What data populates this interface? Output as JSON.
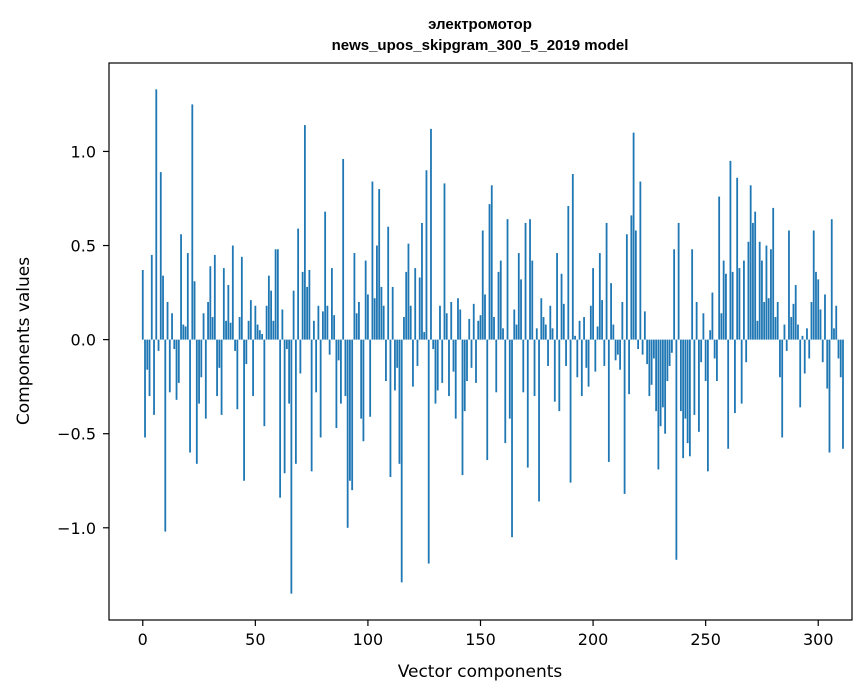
{
  "chart_data": {
    "type": "bar",
    "title_line1": "электромотор",
    "title_line2": "news_upos_skipgram_300_5_2019 model",
    "xlabel": "Vector components",
    "ylabel": "Components values",
    "xlim": [
      -15,
      315
    ],
    "ylim": [
      -1.49,
      1.47
    ],
    "xticks": [
      0,
      50,
      100,
      150,
      200,
      250,
      300
    ],
    "xtick_labels": [
      "0",
      "50",
      "100",
      "150",
      "200",
      "250",
      "300"
    ],
    "yticks": [
      -1.0,
      -0.5,
      0.0,
      0.5,
      1.0
    ],
    "ytick_labels": [
      "−1.0",
      "−0.5",
      "0.0",
      "0.5",
      "1.0"
    ],
    "bar_color": "#1f77b4",
    "values": [
      0.37,
      -0.52,
      -0.16,
      -0.3,
      0.45,
      -0.4,
      1.33,
      -0.06,
      0.89,
      0.34,
      -1.02,
      0.2,
      -0.28,
      0.14,
      -0.05,
      -0.32,
      -0.23,
      0.56,
      0.08,
      0.07,
      0.46,
      -0.6,
      1.25,
      0.31,
      -0.66,
      -0.34,
      -0.2,
      0.14,
      -0.42,
      0.2,
      0.39,
      0.12,
      0.45,
      -0.3,
      -0.15,
      -0.4,
      0.38,
      0.1,
      0.29,
      0.09,
      0.5,
      -0.06,
      -0.37,
      0.12,
      0.44,
      -0.75,
      -0.13,
      0.1,
      0.21,
      -0.3,
      0.18,
      0.08,
      0.05,
      0.03,
      -0.46,
      0.18,
      0.34,
      0.26,
      0.1,
      0.48,
      0.48,
      -0.84,
      0.16,
      -0.71,
      -0.05,
      -0.34,
      -1.35,
      0.26,
      -0.66,
      0.59,
      -0.18,
      0.36,
      1.14,
      0.28,
      0.37,
      -0.7,
      0.1,
      -0.28,
      0.18,
      -0.52,
      0.15,
      0.68,
      0.18,
      -0.08,
      0.38,
      0.13,
      -0.47,
      -0.11,
      -0.34,
      0.96,
      -0.3,
      -1.0,
      -0.75,
      -0.8,
      0.46,
      0.14,
      0.2,
      -0.42,
      -0.54,
      0.42,
      0.24,
      -0.41,
      0.84,
      0.22,
      0.5,
      0.8,
      0.28,
      0.18,
      -0.22,
      0.6,
      -0.73,
      0.28,
      -0.27,
      -0.15,
      -0.66,
      -1.29,
      0.12,
      0.36,
      0.51,
      0.18,
      -0.25,
      0.38,
      -0.14,
      0.33,
      0.62,
      0.04,
      0.9,
      -1.19,
      1.12,
      -0.05,
      -0.34,
      -0.27,
      0.18,
      -0.23,
      0.83,
      0.14,
      -0.3,
      0.2,
      -0.17,
      -0.42,
      0.22,
      0.16,
      -0.72,
      -0.38,
      -0.22,
      0.11,
      -0.15,
      0.19,
      -0.23,
      0.1,
      0.13,
      0.58,
      0.24,
      -0.64,
      0.72,
      0.82,
      0.12,
      -0.28,
      0.36,
      0.42,
      0.06,
      -0.55,
      0.64,
      -0.42,
      -1.05,
      0.16,
      0.08,
      0.46,
      0.32,
      -0.28,
      0.62,
      -0.68,
      0.64,
      0.42,
      -0.3,
      0.06,
      -0.86,
      0.22,
      0.12,
      0.08,
      -0.14,
      0.18,
      0.06,
      -0.33,
      0.46,
      -0.38,
      0.35,
      0.19,
      -0.14,
      0.71,
      -0.76,
      0.88,
      0.02,
      -0.2,
      0.1,
      -0.3,
      0.12,
      -0.15,
      -0.25,
      0.18,
      0.38,
      -0.17,
      0.07,
      0.46,
      0.21,
      -0.14,
      0.62,
      -0.65,
      0.3,
      0.08,
      -0.11,
      -0.08,
      -0.16,
      0.2,
      -0.82,
      0.56,
      -0.29,
      0.66,
      1.1,
      0.58,
      -0.05,
      0.84,
      -0.08,
      0.15,
      -0.13,
      -0.3,
      -0.24,
      -0.1,
      -0.38,
      -0.69,
      -0.46,
      -0.36,
      -0.5,
      -0.22,
      -0.14,
      -0.07,
      0.48,
      -1.17,
      0.62,
      -0.38,
      -0.63,
      -0.42,
      -0.55,
      -0.62,
      0.48,
      -0.4,
      0.2,
      -0.49,
      -0.12,
      0.14,
      -0.22,
      -0.7,
      0.05,
      0.25,
      -0.1,
      -0.22,
      0.76,
      0.14,
      0.42,
      0.35,
      -0.58,
      0.95,
      0.36,
      -0.39,
      0.86,
      0.38,
      -0.34,
      0.42,
      -0.12,
      0.52,
      0.82,
      0.62,
      0.68,
      0.1,
      0.52,
      0.42,
      0.2,
      0.5,
      0.22,
      0.48,
      0.7,
      0.12,
      0.2,
      -0.2,
      -0.52,
      0.08,
      -0.06,
      0.58,
      0.12,
      0.19,
      0.29,
      0.08,
      -0.36,
      0.02,
      -0.18,
      0.06,
      -0.1,
      0.2,
      0.58,
      0.36,
      0.32,
      0.16,
      -0.12,
      0.24,
      -0.26,
      -0.6,
      0.64,
      0.06,
      0.18,
      -0.1,
      -0.2,
      -0.58
    ]
  }
}
